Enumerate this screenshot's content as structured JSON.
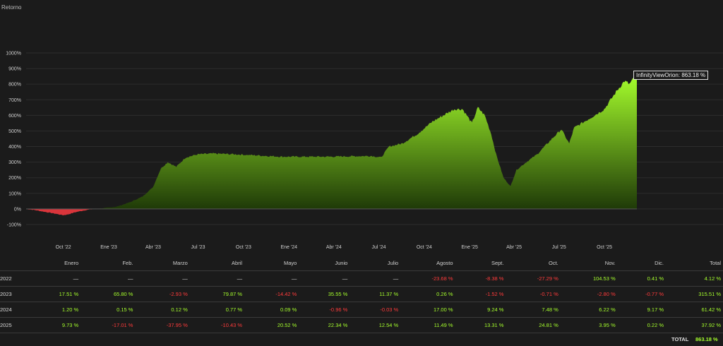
{
  "chart_data": {
    "type": "area",
    "title": "Retorno",
    "ylim": [
      -100,
      1000
    ],
    "yticks": [
      "1000%",
      "900%",
      "800%",
      "700%",
      "600%",
      "500%",
      "400%",
      "300%",
      "200%",
      "100%",
      "0%",
      "-100%"
    ],
    "ytick_values": [
      1000,
      900,
      800,
      700,
      600,
      500,
      400,
      300,
      200,
      100,
      0,
      -100
    ],
    "xticks": [
      "Oct '22",
      "Ene '23",
      "Abr '23",
      "Jul '23",
      "Oct '23",
      "Ene '24",
      "Abr '24",
      "Jul '24",
      "Oct '24",
      "Ene '25",
      "Abr '25",
      "Jul '25",
      "Oct '25"
    ],
    "x_start": "2022-08-01",
    "x_end": "2025-12-20",
    "positive_color": "#a6ff2c",
    "negative_color": "#d9353b",
    "series": [
      {
        "name": "InfinityViewOrion",
        "points": [
          [
            "2022-08-01",
            0
          ],
          [
            "2022-08-20",
            -8
          ],
          [
            "2022-09-10",
            -20
          ],
          [
            "2022-09-25",
            -28
          ],
          [
            "2022-10-15",
            -40
          ],
          [
            "2022-10-25",
            -35
          ],
          [
            "2022-11-10",
            -20
          ],
          [
            "2022-11-25",
            -10
          ],
          [
            "2022-12-15",
            0
          ],
          [
            "2023-01-05",
            5
          ],
          [
            "2023-02-01",
            15
          ],
          [
            "2023-03-01",
            45
          ],
          [
            "2023-03-25",
            80
          ],
          [
            "2023-04-15",
            140
          ],
          [
            "2023-05-01",
            260
          ],
          [
            "2023-05-15",
            300
          ],
          [
            "2023-06-01",
            270
          ],
          [
            "2023-06-20",
            330
          ],
          [
            "2023-07-15",
            350
          ],
          [
            "2023-08-15",
            355
          ],
          [
            "2023-10-01",
            350
          ],
          [
            "2024-01-01",
            335
          ],
          [
            "2024-04-01",
            335
          ],
          [
            "2024-07-01",
            340
          ],
          [
            "2024-07-20",
            330
          ],
          [
            "2024-08-05",
            400
          ],
          [
            "2024-09-01",
            420
          ],
          [
            "2024-10-01",
            480
          ],
          [
            "2024-11-01",
            560
          ],
          [
            "2024-12-15",
            640
          ],
          [
            "2025-01-01",
            640
          ],
          [
            "2025-01-20",
            550
          ],
          [
            "2025-02-01",
            650
          ],
          [
            "2025-02-15",
            600
          ],
          [
            "2025-02-28",
            480
          ],
          [
            "2025-03-10",
            350
          ],
          [
            "2025-03-25",
            200
          ],
          [
            "2025-04-08",
            145
          ],
          [
            "2025-04-20",
            250
          ],
          [
            "2025-05-10",
            300
          ],
          [
            "2025-06-01",
            350
          ],
          [
            "2025-07-01",
            450
          ],
          [
            "2025-07-20",
            510
          ],
          [
            "2025-08-05",
            420
          ],
          [
            "2025-08-15",
            520
          ],
          [
            "2025-09-15",
            580
          ],
          [
            "2025-10-15",
            640
          ],
          [
            "2025-11-10",
            760
          ],
          [
            "2025-11-25",
            820
          ],
          [
            "2025-12-05",
            800
          ],
          [
            "2025-12-20",
            863.18
          ]
        ]
      }
    ],
    "tooltip": {
      "series": "InfinityViewOrion",
      "value": "863.18 %"
    }
  },
  "table": {
    "headers": [
      "",
      "Enero",
      "Feb.",
      "Marzo",
      "Abril",
      "Mayo",
      "Junio",
      "Julio",
      "Agosto",
      "Sept.",
      "Oct.",
      "Nov.",
      "Dic.",
      "Total"
    ],
    "rows": [
      {
        "year": "2022",
        "cells": [
          "—",
          "—",
          "—",
          "—",
          "—",
          "—",
          "—",
          "-23.68 %",
          "-8.38 %",
          "-27.29 %",
          "104.53 %",
          "0.41 %",
          "4.12 %"
        ]
      },
      {
        "year": "2023",
        "cells": [
          "17.51 %",
          "65.80 %",
          "-2.93 %",
          "79.87 %",
          "-14.42 %",
          "35.55 %",
          "11.37 %",
          "0.26 %",
          "-1.52 %",
          "-0.71 %",
          "-2.80 %",
          "-0.77 %",
          "315.51 %"
        ]
      },
      {
        "year": "2024",
        "cells": [
          "1.20 %",
          "0.15 %",
          "0.12 %",
          "0.77 %",
          "0.09 %",
          "-0.96 %",
          "-0.03 %",
          "17.00 %",
          "9.24 %",
          "7.48 %",
          "6.22 %",
          "9.17 %",
          "61.42 %"
        ]
      },
      {
        "year": "2025",
        "cells": [
          "9.73 %",
          "-17.01 %",
          "-37.95 %",
          "-10.43 %",
          "20.52 %",
          "22.34 %",
          "12.54 %",
          "11.49 %",
          "13.31 %",
          "24.81 %",
          "3.95 %",
          "0.22 %",
          "37.92 %"
        ]
      }
    ],
    "total_label": "TOTAL",
    "total_value": "863.18 %"
  }
}
